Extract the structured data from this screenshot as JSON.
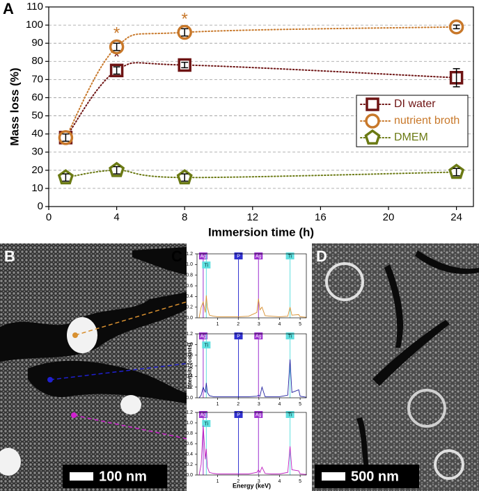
{
  "panels": {
    "a": "A",
    "b": "B",
    "c": "C",
    "d": "D"
  },
  "scale_bars": [
    "100 nm",
    "500 nm"
  ],
  "chart_data": [
    {
      "type": "line",
      "smooth": true,
      "line_style": "dotted",
      "xlabel": "Immersion time (h)",
      "ylabel": "Mass loss (%)",
      "x": [
        1,
        4,
        8,
        24
      ],
      "xlim": [
        0,
        25
      ],
      "xticks": [
        0,
        4,
        8,
        12,
        16,
        20,
        24
      ],
      "ylim": [
        0,
        110
      ],
      "yticks": [
        0,
        10,
        20,
        30,
        40,
        50,
        60,
        70,
        80,
        90,
        100,
        110
      ],
      "grid": true,
      "legend": "right",
      "series": [
        {
          "name": "DI water",
          "color": "#6e1414",
          "marker": "square",
          "values": [
            38,
            75,
            78,
            71
          ],
          "errors": [
            2,
            2,
            1.5,
            5
          ],
          "significance": [
            null,
            "*",
            null,
            null
          ]
        },
        {
          "name": "nutrient broth",
          "color": "#c8782a",
          "marker": "circle",
          "values": [
            38,
            88,
            96,
            99
          ],
          "errors": [
            2,
            2,
            2,
            1
          ],
          "significance": [
            null,
            "*",
            "*",
            null
          ]
        },
        {
          "name": "DMEM",
          "color": "#6b7a14",
          "marker": "pentagon",
          "values": [
            16,
            20,
            16,
            19
          ],
          "errors": [
            2,
            2,
            2,
            2
          ],
          "significance": [
            null,
            null,
            null,
            null
          ]
        }
      ]
    },
    {
      "type": "line",
      "xlim": [
        0,
        5.3
      ],
      "xticks": [
        1,
        2,
        3,
        4,
        5
      ],
      "ylim": [
        0,
        1.2
      ],
      "yticks": [
        {
          "value": 0,
          "label": "0.0"
        },
        0.2,
        0.4,
        0.6,
        0.8,
        {
          "value": 1,
          "label": "1.0"
        },
        1.2
      ],
      "peaks": [
        {
          "label": "Ag",
          "x": 0.3,
          "color": "#9b30d0"
        },
        {
          "label": "Ti",
          "x": 0.45,
          "color": "#60e0e0"
        },
        {
          "label": "P",
          "x": 2.01,
          "color": "#3030d0"
        },
        {
          "label": "Ag",
          "x": 2.98,
          "color": "#9b30d0"
        },
        {
          "label": "Ti",
          "x": 4.51,
          "color": "#60e0e0"
        }
      ],
      "x": [
        0.1,
        0.2,
        0.3,
        0.4,
        0.45,
        0.5,
        0.6,
        0.8,
        1.0,
        1.5,
        2.0,
        2.5,
        2.9,
        2.98,
        3.05,
        3.15,
        3.3,
        3.6,
        4.0,
        4.4,
        4.51,
        4.6,
        4.93,
        5.0,
        5.3
      ],
      "series": [
        {
          "color": "#d89030",
          "values": [
            0,
            0.2,
            0.3,
            0.1,
            0.42,
            0.2,
            0.05,
            0.03,
            0.02,
            0.02,
            0.02,
            0.03,
            0.1,
            0.36,
            0.15,
            0.2,
            0.04,
            0.03,
            0.02,
            0.03,
            0.2,
            0.05,
            0.06,
            0.02,
            0.01
          ]
        }
      ]
    },
    {
      "type": "line",
      "ylabel": "Intensity (counts)",
      "xlim": [
        0,
        5.3
      ],
      "xticks": [
        1,
        2,
        3,
        4,
        5
      ],
      "ylim": [
        0,
        1.2
      ],
      "yticks": [
        {
          "value": 0,
          "label": "0.0"
        },
        0.2,
        0.4,
        0.6,
        0.8,
        {
          "value": 1,
          "label": "1.0"
        },
        1.2
      ],
      "peaks": [
        {
          "label": "Ag",
          "x": 0.3,
          "color": "#9b30d0"
        },
        {
          "label": "Ti",
          "x": 0.45,
          "color": "#60e0e0"
        },
        {
          "label": "P",
          "x": 2.01,
          "color": "#3030d0"
        },
        {
          "label": "Ag",
          "x": 2.98,
          "color": "#9b30d0"
        },
        {
          "label": "Ti",
          "x": 4.51,
          "color": "#60e0e0"
        }
      ],
      "x": [
        0.1,
        0.2,
        0.3,
        0.4,
        0.45,
        0.5,
        0.6,
        0.8,
        1.0,
        1.5,
        2.0,
        2.5,
        2.9,
        2.98,
        3.05,
        3.15,
        3.3,
        3.6,
        4.0,
        4.4,
        4.51,
        4.6,
        4.93,
        5.0,
        5.3
      ],
      "series": [
        {
          "color": "#2020a0",
          "values": [
            0,
            0.05,
            0.2,
            0.1,
            0.28,
            0.1,
            0.04,
            0.02,
            0.02,
            0.02,
            0.02,
            0.02,
            0.03,
            0.05,
            0.03,
            0.2,
            0.02,
            0.02,
            0.02,
            0.05,
            0.72,
            0.1,
            0.15,
            0.03,
            0.01
          ]
        }
      ]
    },
    {
      "type": "line",
      "xlabel": "Energy (keV)",
      "xlim": [
        0,
        5.3
      ],
      "xticks": [
        1,
        2,
        3,
        4,
        5
      ],
      "ylim": [
        0,
        1.2
      ],
      "yticks": [
        {
          "value": 0,
          "label": "0.0"
        },
        0.2,
        0.4,
        0.6,
        0.8,
        {
          "value": 1,
          "label": "1.0"
        },
        1.2
      ],
      "peaks": [
        {
          "label": "Ag",
          "x": 0.3,
          "color": "#9b30d0"
        },
        {
          "label": "Ti",
          "x": 0.45,
          "color": "#60e0e0"
        },
        {
          "label": "P",
          "x": 2.01,
          "color": "#3030d0"
        },
        {
          "label": "Ag",
          "x": 2.98,
          "color": "#9b30d0"
        },
        {
          "label": "Ti",
          "x": 4.51,
          "color": "#60e0e0"
        }
      ],
      "x": [
        0.1,
        0.2,
        0.3,
        0.4,
        0.45,
        0.5,
        0.6,
        0.8,
        1.0,
        1.5,
        2.0,
        2.5,
        2.9,
        2.98,
        3.05,
        3.15,
        3.3,
        3.6,
        4.0,
        4.4,
        4.51,
        4.6,
        4.93,
        5.0,
        5.3
      ],
      "series": [
        {
          "color": "#c020c0",
          "values": [
            0,
            0.2,
            0.95,
            0.3,
            0.5,
            0.15,
            0.05,
            0.03,
            0.02,
            0.02,
            0.02,
            0.02,
            0.05,
            0.1,
            0.05,
            0.15,
            0.03,
            0.02,
            0.02,
            0.05,
            0.55,
            0.1,
            0.08,
            0.02,
            0.01
          ]
        }
      ]
    }
  ]
}
